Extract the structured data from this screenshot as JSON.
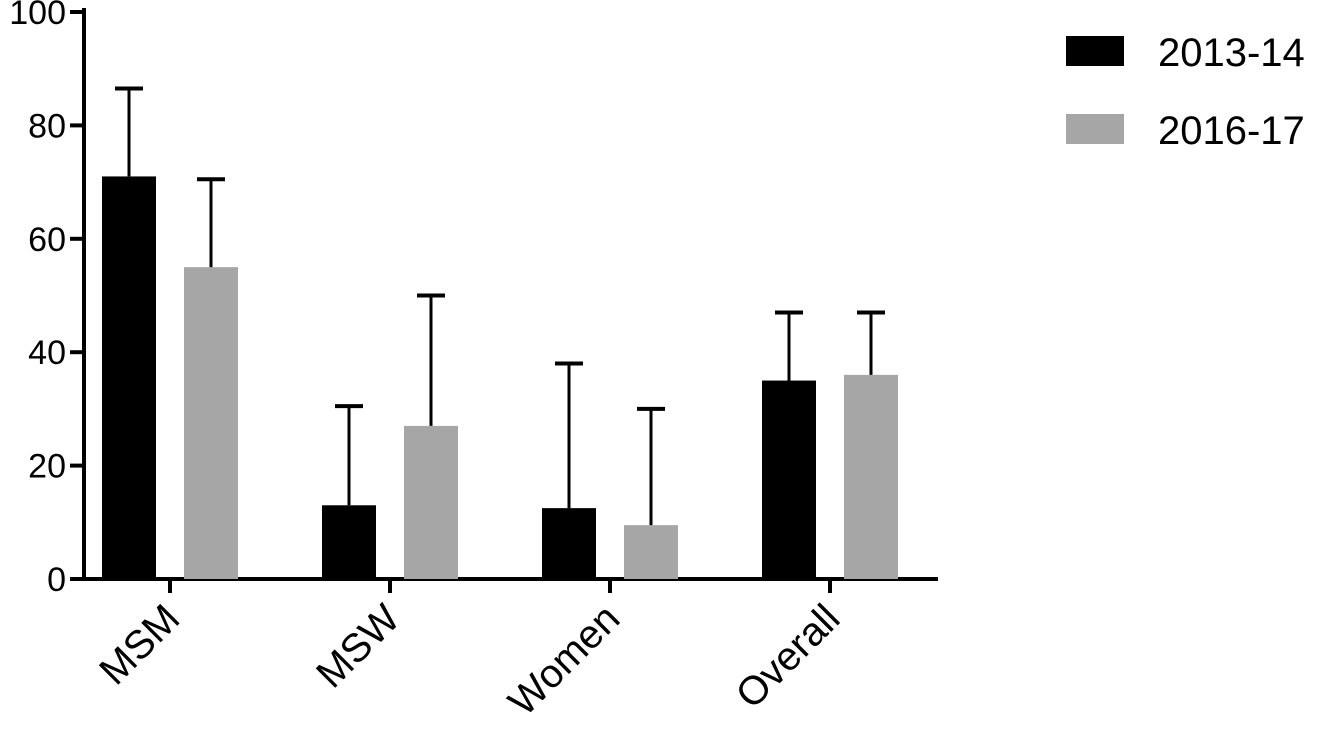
{
  "chart_data": {
    "type": "bar",
    "title": "",
    "xlabel": "",
    "ylabel": "",
    "ylim": [
      0,
      100
    ],
    "yticks": [
      0,
      20,
      40,
      60,
      80,
      100
    ],
    "categories": [
      "MSM",
      "MSW",
      "Women",
      "Overall"
    ],
    "series": [
      {
        "name": "2013-14",
        "color": "#000000",
        "values": [
          71,
          13,
          12.5,
          35
        ],
        "error_upper": [
          86.5,
          30.5,
          38,
          47
        ]
      },
      {
        "name": "2016-17",
        "color": "#a6a6a6",
        "values": [
          55,
          27,
          9.5,
          36
        ],
        "error_upper": [
          70.5,
          50,
          30,
          47
        ]
      }
    ],
    "legend": "top-right",
    "grid": false
  }
}
